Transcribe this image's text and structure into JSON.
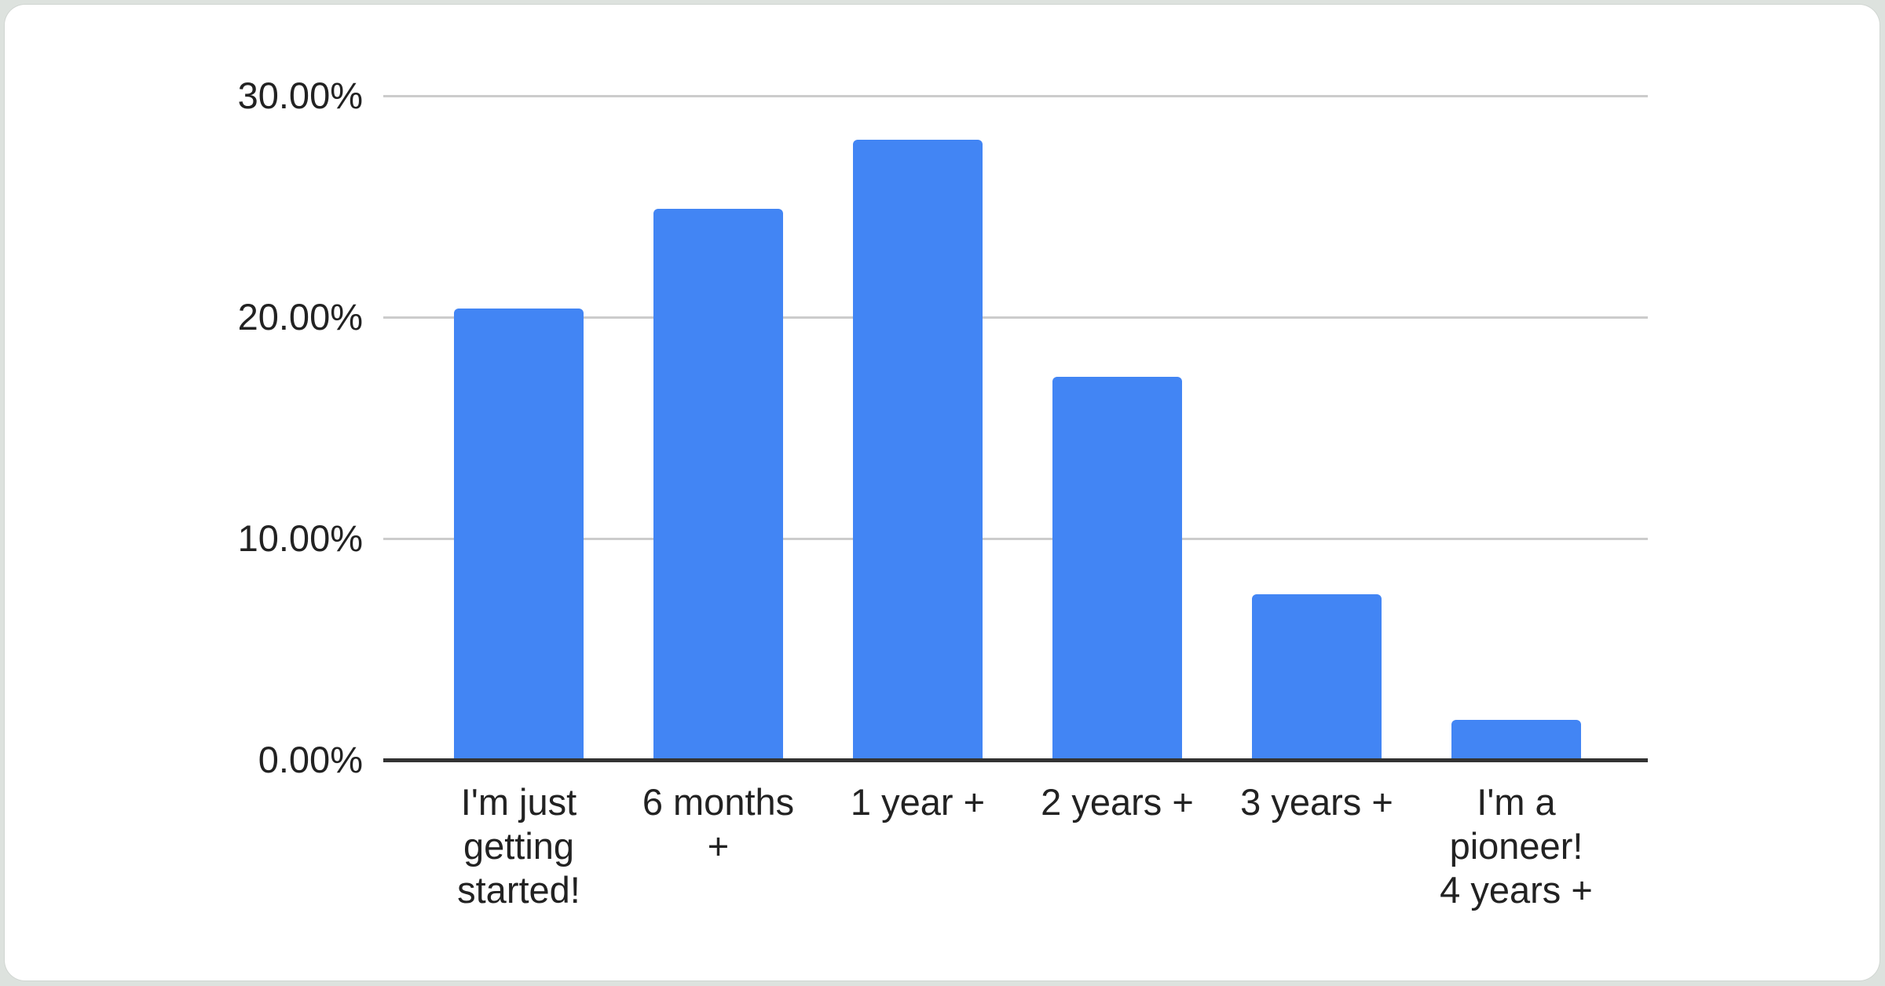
{
  "frame": {
    "outer_background": "#dde2de",
    "card_background": "#ffffff"
  },
  "chart_data": {
    "type": "bar",
    "title": "",
    "xlabel": "",
    "ylabel": "",
    "categories": [
      "I'm just\ngetting\nstarted!",
      "6 months\n+",
      "1 year +",
      "2 years +",
      "3 years +",
      "I'm a\npioneer!\n4 years +"
    ],
    "values": [
      20.4,
      24.9,
      28.0,
      17.3,
      7.5,
      1.8
    ],
    "unit": "%",
    "ylim": [
      0,
      30
    ],
    "yticks": [
      {
        "value": 0,
        "label": "0.00%"
      },
      {
        "value": 10,
        "label": "10.00%"
      },
      {
        "value": 20,
        "label": "20.00%"
      },
      {
        "value": 30,
        "label": "30.00%"
      }
    ],
    "grid": true,
    "legend_position": "none",
    "bar_color": "#4285F4",
    "gridline_color": "#cccccc",
    "axis_line_color": "#333333",
    "label_color": "#222222"
  }
}
